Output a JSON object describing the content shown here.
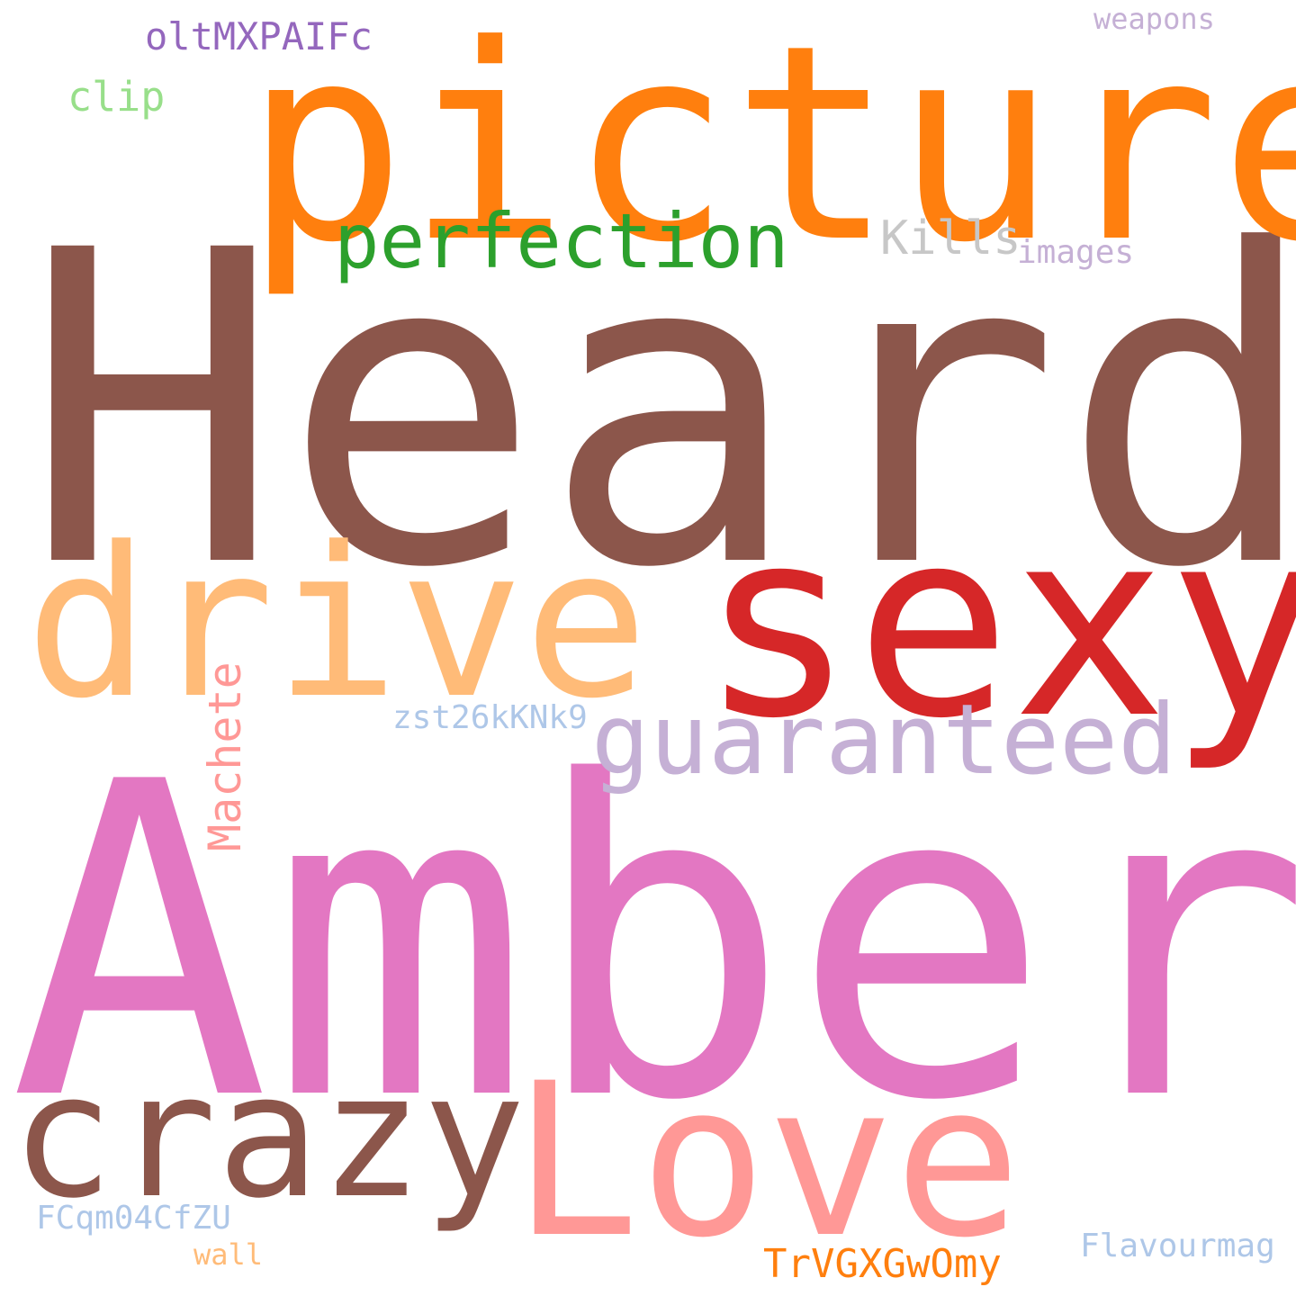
{
  "word_cloud": {
    "background": "#ffffff",
    "words": [
      {
        "id": "heard",
        "text": "Heard",
        "color": "#8c564b",
        "orientation": "horizontal"
      },
      {
        "id": "amber",
        "text": "Amber",
        "color": "#e377c2",
        "orientation": "horizontal"
      },
      {
        "id": "picture",
        "text": "picture",
        "color": "#ff7f0e",
        "orientation": "horizontal"
      },
      {
        "id": "sexy",
        "text": "sexy",
        "color": "#d62728",
        "orientation": "horizontal"
      },
      {
        "id": "drive",
        "text": "drive",
        "color": "#ffbb78",
        "orientation": "horizontal"
      },
      {
        "id": "love",
        "text": "Love",
        "color": "#ff9896",
        "orientation": "horizontal"
      },
      {
        "id": "crazy",
        "text": "crazy",
        "color": "#8c564b",
        "orientation": "horizontal"
      },
      {
        "id": "guaranteed",
        "text": "guaranteed",
        "color": "#c5b0d5",
        "orientation": "horizontal"
      },
      {
        "id": "perfection",
        "text": "perfection",
        "color": "#2ca02c",
        "orientation": "horizontal"
      },
      {
        "id": "kills",
        "text": "Kills",
        "color": "#c7c7c7",
        "orientation": "horizontal"
      },
      {
        "id": "images",
        "text": "images",
        "color": "#c5b0d5",
        "orientation": "horizontal"
      },
      {
        "id": "weapons",
        "text": "weapons",
        "color": "#c5b0d5",
        "orientation": "horizontal"
      },
      {
        "id": "olt",
        "text": "oltMXPAIFc",
        "color": "#9467bd",
        "orientation": "horizontal"
      },
      {
        "id": "clip",
        "text": "clip",
        "color": "#98df8a",
        "orientation": "horizontal"
      },
      {
        "id": "zst",
        "text": "zst26kKNk9",
        "color": "#aec7e8",
        "orientation": "horizontal"
      },
      {
        "id": "machete",
        "text": "Machete",
        "color": "#ff9896",
        "orientation": "vertical"
      },
      {
        "id": "fcq",
        "text": "FCqm04CfZU",
        "color": "#aec7e8",
        "orientation": "horizontal"
      },
      {
        "id": "wall",
        "text": "wall",
        "color": "#ffbb78",
        "orientation": "horizontal"
      },
      {
        "id": "trv",
        "text": "TrVGXGwOmy",
        "color": "#ff7f0e",
        "orientation": "horizontal"
      },
      {
        "id": "flav",
        "text": "Flavourmag",
        "color": "#aec7e8",
        "orientation": "horizontal"
      }
    ]
  }
}
